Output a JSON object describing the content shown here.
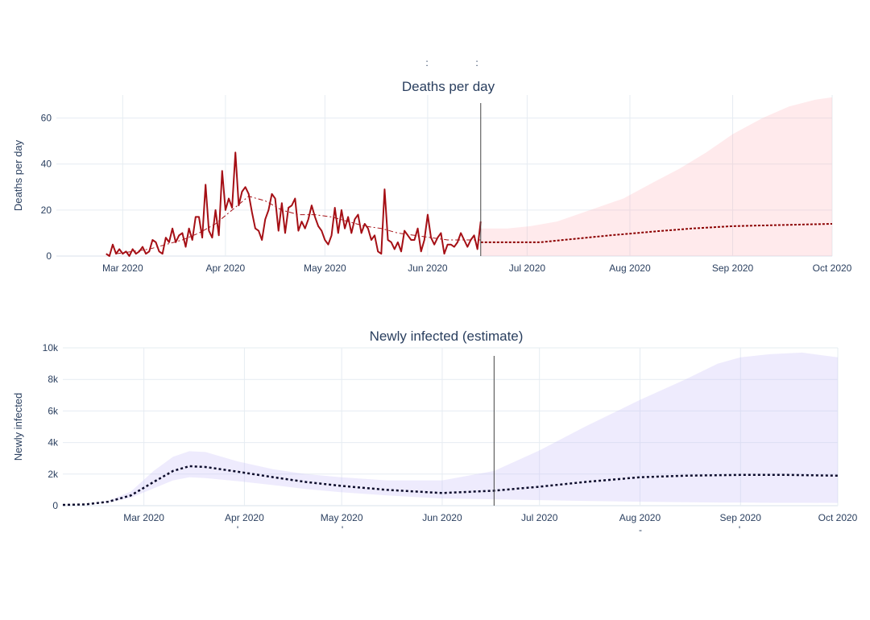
{
  "chart_data": [
    {
      "type": "line",
      "title": "Deaths per day",
      "ylabel": "Deaths per day",
      "xlim": [
        "2020-02-10",
        "2020-10-01"
      ],
      "ylim": [
        0,
        70
      ],
      "y_ticks": [
        0,
        20,
        40,
        60
      ],
      "y_tick_labels": [
        "0",
        "20",
        "40",
        "60"
      ],
      "x_ticks": [
        "2020-03-01",
        "2020-04-01",
        "2020-05-01",
        "2020-06-01",
        "2020-07-01",
        "2020-08-01",
        "2020-09-01",
        "2020-10-01"
      ],
      "x_tick_labels": [
        "Mar 2020",
        "Apr 2020",
        "May 2020",
        "Jun 2020",
        "Jul 2020",
        "Aug 2020",
        "Sep 2020",
        "Oct 2020"
      ],
      "vline_date": "2020-06-17",
      "series": [
        {
          "role": "observed",
          "color": "#a50f15",
          "x": [
            "2020-02-25",
            "2020-02-26",
            "2020-02-27",
            "2020-02-28",
            "2020-02-29",
            "2020-03-01",
            "2020-03-02",
            "2020-03-03",
            "2020-03-04",
            "2020-03-05",
            "2020-03-06",
            "2020-03-07",
            "2020-03-08",
            "2020-03-09",
            "2020-03-10",
            "2020-03-11",
            "2020-03-12",
            "2020-03-13",
            "2020-03-14",
            "2020-03-15",
            "2020-03-16",
            "2020-03-17",
            "2020-03-18",
            "2020-03-19",
            "2020-03-20",
            "2020-03-21",
            "2020-03-22",
            "2020-03-23",
            "2020-03-24",
            "2020-03-25",
            "2020-03-26",
            "2020-03-27",
            "2020-03-28",
            "2020-03-29",
            "2020-03-30",
            "2020-03-31",
            "2020-04-01",
            "2020-04-02",
            "2020-04-03",
            "2020-04-04",
            "2020-04-05",
            "2020-04-06",
            "2020-04-07",
            "2020-04-08",
            "2020-04-09",
            "2020-04-10",
            "2020-04-11",
            "2020-04-12",
            "2020-04-13",
            "2020-04-14",
            "2020-04-15",
            "2020-04-16",
            "2020-04-17",
            "2020-04-18",
            "2020-04-19",
            "2020-04-20",
            "2020-04-21",
            "2020-04-22",
            "2020-04-23",
            "2020-04-24",
            "2020-04-25",
            "2020-04-26",
            "2020-04-27",
            "2020-04-28",
            "2020-04-29",
            "2020-04-30",
            "2020-05-01",
            "2020-05-02",
            "2020-05-03",
            "2020-05-04",
            "2020-05-05",
            "2020-05-06",
            "2020-05-07",
            "2020-05-08",
            "2020-05-09",
            "2020-05-10",
            "2020-05-11",
            "2020-05-12",
            "2020-05-13",
            "2020-05-14",
            "2020-05-15",
            "2020-05-16",
            "2020-05-17",
            "2020-05-18",
            "2020-05-19",
            "2020-05-20",
            "2020-05-21",
            "2020-05-22",
            "2020-05-23",
            "2020-05-24",
            "2020-05-25",
            "2020-05-26",
            "2020-05-27",
            "2020-05-28",
            "2020-05-29",
            "2020-05-30",
            "2020-05-31",
            "2020-06-01",
            "2020-06-02",
            "2020-06-03",
            "2020-06-04",
            "2020-06-05",
            "2020-06-06",
            "2020-06-07",
            "2020-06-08",
            "2020-06-09",
            "2020-06-10",
            "2020-06-11",
            "2020-06-12",
            "2020-06-13",
            "2020-06-14",
            "2020-06-15",
            "2020-06-16",
            "2020-06-17"
          ],
          "values": [
            1,
            0,
            5,
            1,
            3,
            1,
            2,
            0,
            3,
            1,
            2,
            4,
            1,
            2,
            7,
            6,
            2,
            1,
            8,
            6,
            12,
            6,
            9,
            10,
            4,
            12,
            7,
            17,
            17,
            8,
            31,
            11,
            8,
            20,
            9,
            37,
            20,
            25,
            21,
            45,
            22,
            28,
            30,
            27,
            19,
            12,
            11,
            7,
            16,
            20,
            27,
            25,
            11,
            23,
            10,
            21,
            22,
            25,
            11,
            15,
            12,
            16,
            22,
            17,
            13,
            11,
            7,
            5,
            9,
            21,
            10,
            20,
            12,
            17,
            10,
            16,
            18,
            10,
            14,
            12,
            7,
            9,
            2,
            1,
            29,
            7,
            6,
            3,
            6,
            2,
            11,
            9,
            7,
            7,
            12,
            2,
            7,
            18,
            8,
            5,
            8,
            10,
            1,
            5,
            5,
            4,
            6,
            10,
            7,
            4,
            7,
            9,
            3,
            15
          ]
        },
        {
          "role": "smoothed",
          "color": "#a50f15",
          "x": [
            "2020-02-28",
            "2020-03-04",
            "2020-03-09",
            "2020-03-14",
            "2020-03-19",
            "2020-03-24",
            "2020-03-29",
            "2020-04-03",
            "2020-04-08",
            "2020-04-13",
            "2020-04-18",
            "2020-04-23",
            "2020-04-28",
            "2020-05-03",
            "2020-05-08",
            "2020-05-13",
            "2020-05-18",
            "2020-05-23",
            "2020-05-28",
            "2020-06-02",
            "2020-06-07",
            "2020-06-12",
            "2020-06-17"
          ],
          "values": [
            1,
            2,
            3,
            5,
            7,
            10,
            14,
            20,
            26,
            24,
            20,
            18,
            18,
            17,
            15,
            13,
            12,
            10,
            9,
            8,
            7,
            7,
            7
          ]
        },
        {
          "role": "forecast",
          "color": "#8b0000",
          "x": [
            "2020-06-17",
            "2020-07-05",
            "2020-07-12",
            "2020-07-19",
            "2020-07-26",
            "2020-08-03",
            "2020-08-11",
            "2020-08-20",
            "2020-09-01",
            "2020-10-01"
          ],
          "values": [
            6,
            6,
            7,
            8,
            9,
            10,
            11,
            12,
            13,
            14
          ]
        }
      ],
      "band": {
        "color": "rgba(255,170,180,0.25)",
        "x": [
          "2020-06-17",
          "2020-06-25",
          "2020-07-02",
          "2020-07-10",
          "2020-07-20",
          "2020-07-30",
          "2020-08-08",
          "2020-08-16",
          "2020-08-24",
          "2020-09-01",
          "2020-09-10",
          "2020-09-18",
          "2020-09-26",
          "2020-10-01"
        ],
        "upper": [
          12,
          12,
          13,
          15,
          20,
          25,
          32,
          38,
          45,
          53,
          60,
          65,
          68,
          69
        ],
        "lower": [
          0,
          0,
          0,
          0,
          0,
          0,
          0,
          0,
          0,
          0,
          0,
          0,
          0,
          0
        ]
      }
    },
    {
      "type": "line",
      "title": "Newly infected (estimate)",
      "ylabel": "Newly infected",
      "xlim": [
        "2020-02-05",
        "2020-10-01"
      ],
      "ylim": [
        0,
        10000
      ],
      "y_ticks": [
        0,
        2000,
        4000,
        6000,
        8000,
        10000
      ],
      "y_tick_labels": [
        "0",
        "2k",
        "4k",
        "6k",
        "8k",
        "10k"
      ],
      "x_ticks": [
        "2020-03-01",
        "2020-04-01",
        "2020-05-01",
        "2020-06-01",
        "2020-07-01",
        "2020-08-01",
        "2020-09-01",
        "2020-10-01"
      ],
      "x_tick_labels": [
        "Mar 2020",
        "Apr 2020",
        "May 2020",
        "Jun 2020",
        "Jul 2020",
        "Aug 2020",
        "Sep 2020",
        "Oct 2020"
      ],
      "vline_date": "2020-06-17",
      "series": [
        {
          "role": "estimate",
          "color": "#0b0b2b",
          "x": [
            "2020-02-05",
            "2020-02-12",
            "2020-02-19",
            "2020-02-26",
            "2020-03-04",
            "2020-03-10",
            "2020-03-15",
            "2020-03-20",
            "2020-03-30",
            "2020-04-10",
            "2020-04-20",
            "2020-05-01",
            "2020-05-15",
            "2020-06-01",
            "2020-06-17",
            "2020-07-01",
            "2020-07-15",
            "2020-08-01",
            "2020-08-15",
            "2020-09-01",
            "2020-09-15",
            "2020-10-01"
          ],
          "values": [
            50,
            80,
            250,
            650,
            1500,
            2200,
            2500,
            2450,
            2150,
            1800,
            1500,
            1250,
            1000,
            800,
            950,
            1200,
            1500,
            1800,
            1900,
            1950,
            1950,
            1900
          ]
        }
      ],
      "band": {
        "color": "rgba(200,190,250,0.3)",
        "x": [
          "2020-02-05",
          "2020-02-12",
          "2020-02-19",
          "2020-02-26",
          "2020-03-04",
          "2020-03-10",
          "2020-03-15",
          "2020-03-20",
          "2020-03-30",
          "2020-04-10",
          "2020-04-20",
          "2020-05-01",
          "2020-05-15",
          "2020-06-01",
          "2020-06-17",
          "2020-07-01",
          "2020-07-15",
          "2020-08-01",
          "2020-08-15",
          "2020-08-25",
          "2020-09-01",
          "2020-09-10",
          "2020-09-20",
          "2020-10-01"
        ],
        "upper": [
          50,
          100,
          300,
          900,
          2200,
          3100,
          3450,
          3400,
          2800,
          2300,
          2000,
          1800,
          1600,
          1600,
          2200,
          3500,
          5000,
          6700,
          8000,
          9000,
          9400,
          9600,
          9700,
          9400
        ],
        "lower": [
          40,
          70,
          200,
          500,
          1100,
          1600,
          1800,
          1750,
          1550,
          1300,
          1050,
          850,
          650,
          450,
          400,
          350,
          300,
          250,
          220,
          200,
          200,
          180,
          180,
          170
        ]
      }
    }
  ]
}
